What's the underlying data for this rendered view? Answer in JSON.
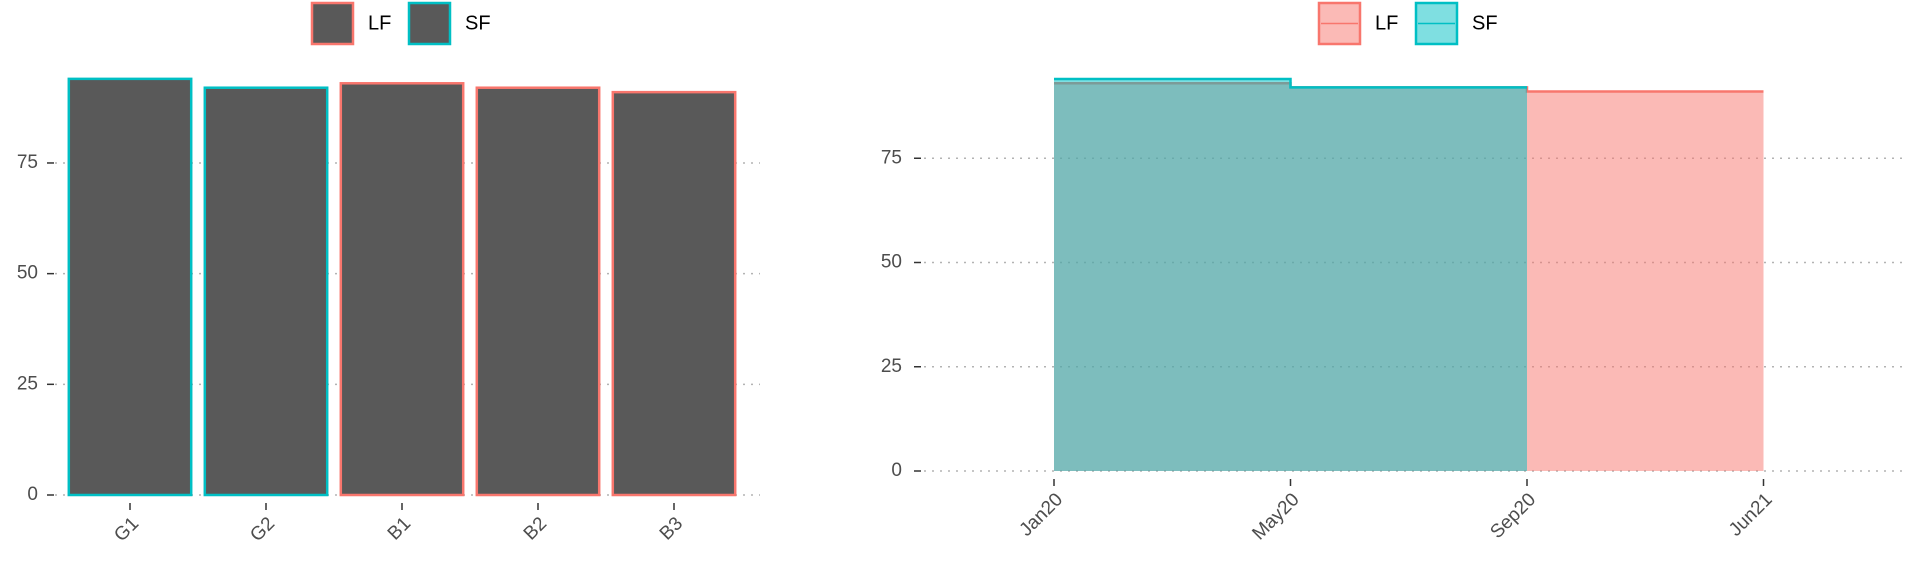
{
  "chart_data": [
    {
      "type": "bar",
      "categories": [
        "G1",
        "G2",
        "B1",
        "B2",
        "B3"
      ],
      "fill": "#595959",
      "series": [
        {
          "name": "LF",
          "color": "#F8766D",
          "values": [
            null,
            null,
            93,
            92,
            91
          ]
        },
        {
          "name": "SF",
          "color": "#00BFC4",
          "values": [
            94,
            92,
            null,
            null,
            null
          ]
        }
      ],
      "ylim": [
        0,
        98
      ],
      "yticks": [
        0,
        25,
        50,
        75
      ],
      "grid": true
    },
    {
      "type": "area",
      "categories": [
        "Jan20",
        "May20",
        "Sep20",
        "Jun21"
      ],
      "series": [
        {
          "name": "LF",
          "color": "#F8766D",
          "values": [
            93,
            92,
            91,
            91
          ]
        },
        {
          "name": "SF",
          "color": "#00BFC4",
          "values": [
            94,
            92,
            92,
            null
          ]
        }
      ],
      "ylim": [
        0,
        98
      ],
      "yticks": [
        0,
        25,
        50,
        75
      ],
      "grid": true
    }
  ]
}
